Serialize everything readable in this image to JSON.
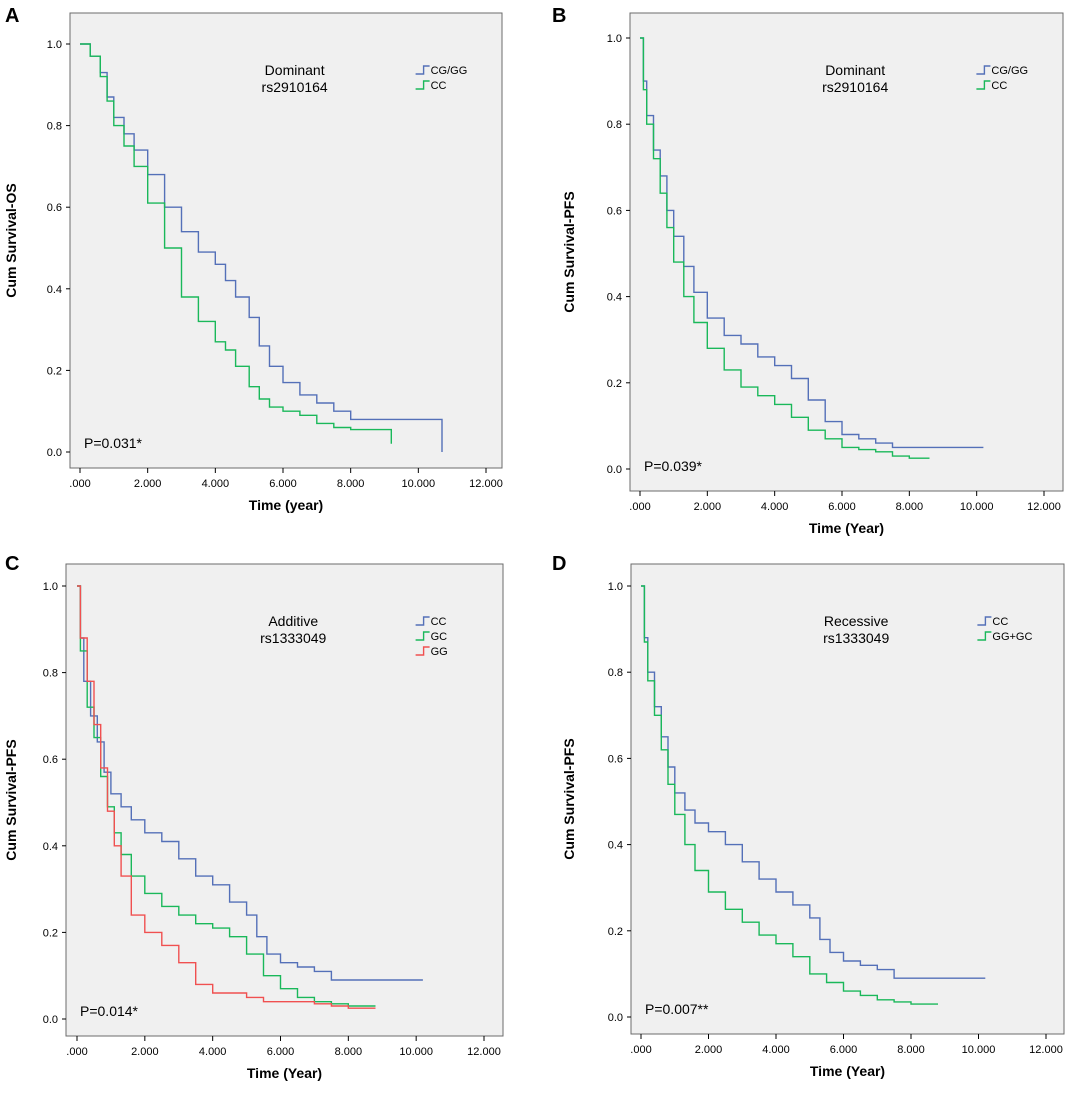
{
  "chart_data": [
    {
      "type": "line",
      "panel": "A",
      "title": [
        "Dominant",
        "rs2910164"
      ],
      "xlabel": "Time (year)",
      "ylabel": "Cum Survival-OS",
      "xlim": [
        0,
        12
      ],
      "ylim": [
        0,
        1
      ],
      "x_ticks": [
        ".000",
        "2.000",
        "4.000",
        "6.000",
        "8.000",
        "10.000",
        "12.000"
      ],
      "y_ticks": [
        "0.0",
        "0.2",
        "0.4",
        "0.6",
        "0.8",
        "1.0"
      ],
      "annotation": "P=0.031*",
      "series": [
        {
          "name": "CG/GG",
          "color": "#5470b8",
          "x": [
            0,
            0.3,
            0.6,
            0.8,
            1.0,
            1.3,
            1.6,
            2.0,
            2.5,
            3.0,
            3.5,
            4.0,
            4.3,
            4.6,
            5.0,
            5.3,
            5.6,
            6.0,
            6.5,
            7.0,
            7.5,
            8.0,
            8.5,
            9.0,
            9.5,
            10.0,
            10.7,
            10.7
          ],
          "y": [
            1.0,
            0.97,
            0.93,
            0.87,
            0.82,
            0.78,
            0.74,
            0.68,
            0.6,
            0.54,
            0.49,
            0.46,
            0.42,
            0.38,
            0.33,
            0.26,
            0.21,
            0.17,
            0.14,
            0.12,
            0.1,
            0.08,
            0.08,
            0.08,
            0.08,
            0.08,
            0.08,
            0.0
          ]
        },
        {
          "name": "CC",
          "color": "#1ab85a",
          "x": [
            0,
            0.3,
            0.6,
            0.8,
            1.0,
            1.3,
            1.6,
            2.0,
            2.5,
            3.0,
            3.5,
            4.0,
            4.3,
            4.6,
            5.0,
            5.3,
            5.6,
            6.0,
            6.5,
            7.0,
            7.5,
            8.0,
            8.5,
            9.0,
            9.2,
            9.2
          ],
          "y": [
            1.0,
            0.97,
            0.92,
            0.86,
            0.8,
            0.75,
            0.7,
            0.61,
            0.5,
            0.38,
            0.32,
            0.27,
            0.25,
            0.21,
            0.16,
            0.13,
            0.11,
            0.1,
            0.09,
            0.07,
            0.06,
            0.055,
            0.055,
            0.055,
            0.055,
            0.02
          ]
        }
      ]
    },
    {
      "type": "line",
      "panel": "B",
      "title": [
        "Dominant",
        "rs2910164"
      ],
      "xlabel": "Time (Year)",
      "ylabel": "Cum Survival-PFS",
      "xlim": [
        0,
        12
      ],
      "ylim": [
        0,
        1
      ],
      "x_ticks": [
        ".000",
        "2.000",
        "4.000",
        "6.000",
        "8.000",
        "10.000",
        "12.000"
      ],
      "y_ticks": [
        "0.0",
        "0.2",
        "0.4",
        "0.6",
        "0.8",
        "1.0"
      ],
      "annotation": "P=0.039*",
      "series": [
        {
          "name": "CG/GG",
          "color": "#5470b8",
          "x": [
            0,
            0.1,
            0.2,
            0.4,
            0.6,
            0.8,
            1.0,
            1.3,
            1.6,
            2.0,
            2.5,
            3.0,
            3.5,
            4.0,
            4.5,
            5.0,
            5.5,
            6.0,
            6.5,
            7.0,
            7.5,
            8.0,
            9.0,
            10.2
          ],
          "y": [
            1.0,
            0.9,
            0.82,
            0.74,
            0.68,
            0.6,
            0.54,
            0.47,
            0.41,
            0.35,
            0.31,
            0.29,
            0.26,
            0.24,
            0.21,
            0.16,
            0.11,
            0.08,
            0.07,
            0.06,
            0.05,
            0.05,
            0.05,
            0.05
          ]
        },
        {
          "name": "CC",
          "color": "#1ab85a",
          "x": [
            0,
            0.1,
            0.2,
            0.4,
            0.6,
            0.8,
            1.0,
            1.3,
            1.6,
            2.0,
            2.5,
            3.0,
            3.5,
            4.0,
            4.5,
            5.0,
            5.5,
            6.0,
            6.5,
            7.0,
            7.5,
            8.0,
            8.6
          ],
          "y": [
            1.0,
            0.88,
            0.8,
            0.72,
            0.64,
            0.56,
            0.48,
            0.4,
            0.34,
            0.28,
            0.23,
            0.19,
            0.17,
            0.15,
            0.12,
            0.09,
            0.07,
            0.05,
            0.045,
            0.04,
            0.03,
            0.025,
            0.025
          ]
        }
      ]
    },
    {
      "type": "line",
      "panel": "C",
      "title": [
        "Additive",
        "rs1333049"
      ],
      "xlabel": "Time (Year)",
      "ylabel": "Cum Survival-PFS",
      "xlim": [
        0,
        12
      ],
      "ylim": [
        0,
        1
      ],
      "x_ticks": [
        ".000",
        "2.000",
        "4.000",
        "6.000",
        "8.000",
        "10.000",
        "12.000"
      ],
      "y_ticks": [
        "0.0",
        "0.2",
        "0.4",
        "0.6",
        "0.8",
        "1.0"
      ],
      "annotation": "P=0.014*",
      "series": [
        {
          "name": "CC",
          "color": "#5470b8",
          "x": [
            0,
            0.1,
            0.2,
            0.4,
            0.6,
            0.8,
            1.0,
            1.3,
            1.6,
            2.0,
            2.5,
            3.0,
            3.5,
            4.0,
            4.5,
            5.0,
            5.3,
            5.6,
            6.0,
            6.5,
            7.0,
            7.5,
            8.0,
            9.0,
            10.2
          ],
          "y": [
            1.0,
            0.88,
            0.78,
            0.7,
            0.64,
            0.57,
            0.52,
            0.49,
            0.46,
            0.43,
            0.41,
            0.37,
            0.33,
            0.31,
            0.27,
            0.24,
            0.19,
            0.15,
            0.13,
            0.12,
            0.11,
            0.09,
            0.09,
            0.09,
            0.09
          ]
        },
        {
          "name": "GC",
          "color": "#1ab85a",
          "x": [
            0,
            0.1,
            0.3,
            0.5,
            0.7,
            0.9,
            1.1,
            1.3,
            1.6,
            2.0,
            2.5,
            3.0,
            3.5,
            4.0,
            4.5,
            5.0,
            5.5,
            6.0,
            6.5,
            7.0,
            7.5,
            8.0,
            8.8
          ],
          "y": [
            1.0,
            0.85,
            0.72,
            0.65,
            0.56,
            0.49,
            0.43,
            0.38,
            0.33,
            0.29,
            0.26,
            0.24,
            0.22,
            0.21,
            0.19,
            0.15,
            0.1,
            0.07,
            0.05,
            0.04,
            0.035,
            0.03,
            0.03
          ]
        },
        {
          "name": "GG",
          "color": "#f05050",
          "x": [
            0,
            0.1,
            0.3,
            0.5,
            0.7,
            0.9,
            1.1,
            1.3,
            1.6,
            2.0,
            2.5,
            3.0,
            3.5,
            4.0,
            4.5,
            5.0,
            5.5,
            6.0,
            6.5,
            7.0,
            7.5,
            8.0,
            8.8
          ],
          "y": [
            1.0,
            0.88,
            0.78,
            0.68,
            0.58,
            0.48,
            0.4,
            0.33,
            0.24,
            0.2,
            0.17,
            0.13,
            0.08,
            0.06,
            0.06,
            0.05,
            0.04,
            0.04,
            0.04,
            0.035,
            0.03,
            0.025,
            0.025
          ]
        }
      ]
    },
    {
      "type": "line",
      "panel": "D",
      "title": [
        "Recessive",
        "rs1333049"
      ],
      "xlabel": "Time (Year)",
      "ylabel": "Cum Survival-PFS",
      "xlim": [
        0,
        12
      ],
      "ylim": [
        0,
        1
      ],
      "x_ticks": [
        ".000",
        "2.000",
        "4.000",
        "6.000",
        "8.000",
        "10.000",
        "12.000"
      ],
      "y_ticks": [
        "0.0",
        "0.2",
        "0.4",
        "0.6",
        "0.8",
        "1.0"
      ],
      "annotation": "P=0.007**",
      "series": [
        {
          "name": "CC",
          "color": "#5470b8",
          "x": [
            0,
            0.1,
            0.2,
            0.4,
            0.6,
            0.8,
            1.0,
            1.3,
            1.6,
            2.0,
            2.5,
            3.0,
            3.5,
            4.0,
            4.5,
            5.0,
            5.3,
            5.6,
            6.0,
            6.5,
            7.0,
            7.5,
            8.0,
            9.0,
            10.2
          ],
          "y": [
            1.0,
            0.88,
            0.8,
            0.72,
            0.65,
            0.58,
            0.52,
            0.48,
            0.45,
            0.43,
            0.4,
            0.36,
            0.32,
            0.29,
            0.26,
            0.23,
            0.18,
            0.15,
            0.13,
            0.12,
            0.11,
            0.09,
            0.09,
            0.09,
            0.09
          ]
        },
        {
          "name": "GG+GC",
          "color": "#1ab85a",
          "x": [
            0,
            0.1,
            0.2,
            0.4,
            0.6,
            0.8,
            1.0,
            1.3,
            1.6,
            2.0,
            2.5,
            3.0,
            3.5,
            4.0,
            4.5,
            5.0,
            5.5,
            6.0,
            6.5,
            7.0,
            7.5,
            8.0,
            8.8
          ],
          "y": [
            1.0,
            0.87,
            0.78,
            0.7,
            0.62,
            0.54,
            0.47,
            0.4,
            0.34,
            0.29,
            0.25,
            0.22,
            0.19,
            0.17,
            0.14,
            0.1,
            0.08,
            0.06,
            0.05,
            0.04,
            0.035,
            0.03,
            0.03
          ]
        }
      ]
    }
  ]
}
